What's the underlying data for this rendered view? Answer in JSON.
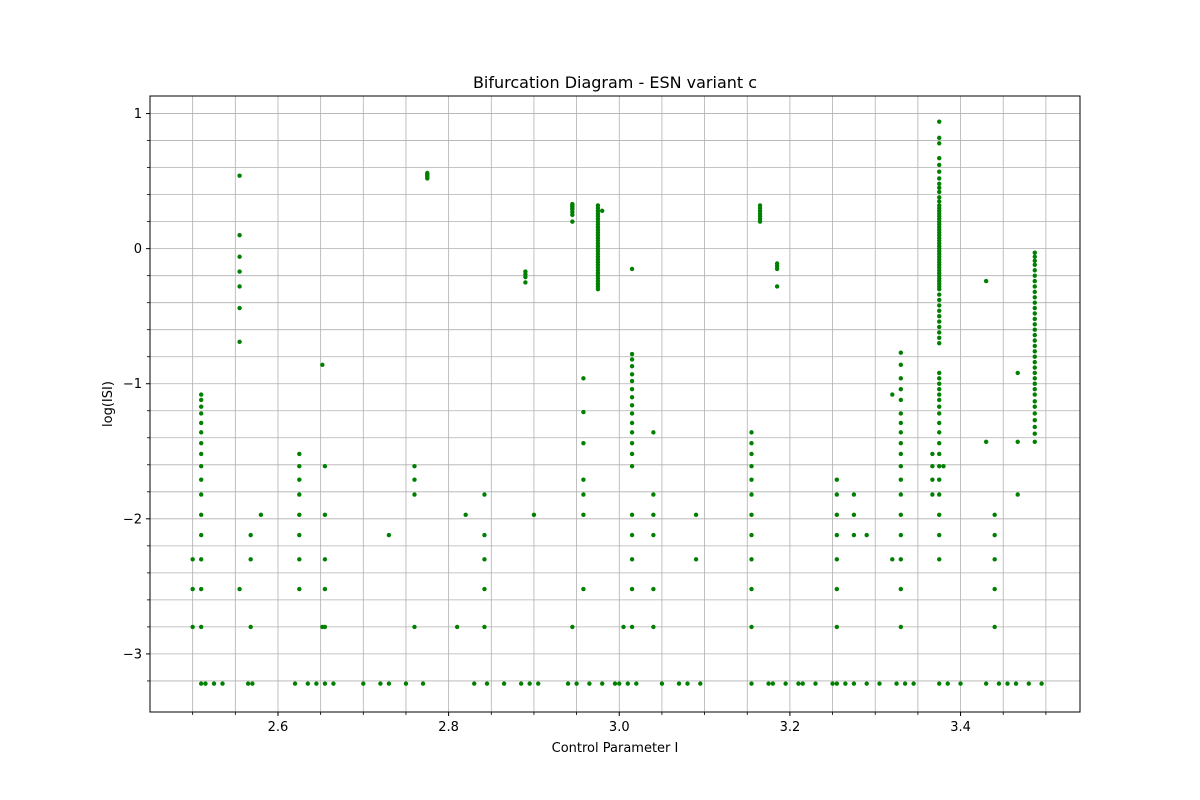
{
  "chart_data": {
    "type": "scatter",
    "title": "Bifurcation Diagram - ESN variant c",
    "xlabel": "Control Parameter I",
    "ylabel": "log(ISI)",
    "xlim": [
      2.45,
      3.54
    ],
    "ylim": [
      -3.43,
      1.13
    ],
    "x_major_ticks": [
      2.6,
      2.8,
      3.0,
      3.2,
      3.4
    ],
    "x_tick_labels": [
      "2.6",
      "2.8",
      "3.0",
      "3.2",
      "3.4"
    ],
    "x_minor_ticks": [
      2.5,
      2.55,
      2.65,
      2.7,
      2.75,
      2.85,
      2.9,
      2.95,
      3.05,
      3.1,
      3.15,
      3.25,
      3.3,
      3.35,
      3.45,
      3.5
    ],
    "y_major_ticks": [
      -3,
      -2,
      -1,
      0,
      1
    ],
    "y_tick_labels": [
      "−3",
      "−2",
      "−1",
      "0",
      "1"
    ],
    "y_minor_ticks": [
      -3.2,
      -2.8,
      -2.6,
      -2.4,
      -2.2,
      -1.8,
      -1.6,
      -1.4,
      -1.2,
      -0.8,
      -0.6,
      -0.4,
      -0.2,
      0.2,
      0.4,
      0.6,
      0.8
    ],
    "grid": true,
    "point_color": "#008000",
    "base_value": -3.22,
    "base_x": [
      2.51,
      2.515,
      2.525,
      2.535,
      2.565,
      2.57,
      2.62,
      2.635,
      2.645,
      2.655,
      2.665,
      2.7,
      2.72,
      2.73,
      2.75,
      2.77,
      2.83,
      2.845,
      2.865,
      2.885,
      2.895,
      2.905,
      2.94,
      2.95,
      2.965,
      2.98,
      2.995,
      3.0,
      3.01,
      3.02,
      3.05,
      3.07,
      3.08,
      3.095,
      3.155,
      3.175,
      3.18,
      3.195,
      3.21,
      3.215,
      3.23,
      3.25,
      3.255,
      3.265,
      3.275,
      3.29,
      3.305,
      3.325,
      3.335,
      3.345,
      3.375,
      3.385,
      3.4,
      3.43,
      3.445,
      3.455,
      3.465,
      3.48,
      3.495
    ],
    "columns": [
      {
        "x": 2.5,
        "y": [
          -2.3,
          -2.52,
          -2.8
        ]
      },
      {
        "x": 2.51,
        "y": [
          -1.08,
          -1.12,
          -1.17,
          -1.22,
          -1.29,
          -1.36,
          -1.44,
          -1.52,
          -1.61,
          -1.71,
          -1.82,
          -1.97,
          -2.12,
          -2.3,
          -2.52,
          -2.8
        ]
      },
      {
        "x": 2.555,
        "y": [
          0.54,
          0.1,
          -0.06,
          -0.17,
          -0.28,
          -0.44,
          -0.69,
          -2.52
        ]
      },
      {
        "x": 2.568,
        "y": [
          -2.12,
          -2.3,
          -2.8
        ]
      },
      {
        "x": 2.58,
        "y": [
          -1.97
        ]
      },
      {
        "x": 2.625,
        "y": [
          -1.52,
          -1.61,
          -1.71,
          -1.82,
          -1.97,
          -2.12,
          -2.3,
          -2.52
        ]
      },
      {
        "x": 2.652,
        "y": [
          -0.86,
          -2.8
        ]
      },
      {
        "x": 2.655,
        "y": [
          -1.61,
          -1.97,
          -2.3,
          -2.52,
          -2.8
        ]
      },
      {
        "x": 2.73,
        "y": [
          -2.12
        ]
      },
      {
        "x": 2.76,
        "y": [
          -1.61,
          -1.71,
          -1.82,
          -2.8
        ]
      },
      {
        "x": 2.775,
        "y": [
          0.52,
          0.53,
          0.54,
          0.55,
          0.56
        ]
      },
      {
        "x": 2.81,
        "y": [
          -2.8
        ]
      },
      {
        "x": 2.82,
        "y": [
          -1.97
        ]
      },
      {
        "x": 2.842,
        "y": [
          -1.82,
          -2.12,
          -2.3,
          -2.52,
          -2.8
        ]
      },
      {
        "x": 2.89,
        "y": [
          -0.17,
          -0.19,
          -0.21,
          -0.25
        ]
      },
      {
        "x": 2.9,
        "y": [
          -1.97
        ]
      },
      {
        "x": 2.945,
        "y": [
          0.2,
          0.25,
          0.27,
          0.29,
          0.3,
          0.31,
          0.32,
          0.33,
          -2.8
        ]
      },
      {
        "x": 2.958,
        "y": [
          -0.96,
          -1.21,
          -1.44,
          -1.71,
          -1.82,
          -1.97,
          -2.52
        ]
      },
      {
        "x": 2.975,
        "y": [
          0.32,
          0.3,
          0.28,
          0.26,
          0.24,
          0.22,
          0.2,
          0.18,
          0.16,
          0.14,
          0.12,
          0.1,
          0.08,
          0.06,
          0.04,
          0.02,
          0.0,
          -0.02,
          -0.04,
          -0.06,
          -0.08,
          -0.1,
          -0.12,
          -0.14,
          -0.16,
          -0.18,
          -0.2,
          -0.22,
          -0.24,
          -0.26,
          -0.28,
          -0.3
        ]
      },
      {
        "x": 2.98,
        "y": [
          0.28
        ]
      },
      {
        "x": 3.005,
        "y": [
          -2.8
        ]
      },
      {
        "x": 3.015,
        "y": [
          -0.15,
          -0.78,
          -0.82,
          -0.87,
          -0.93,
          -0.98,
          -1.04,
          -1.1,
          -1.16,
          -1.22,
          -1.29,
          -1.36,
          -1.44,
          -1.52,
          -1.61,
          -1.97,
          -2.12,
          -2.3,
          -2.52,
          -2.8
        ]
      },
      {
        "x": 3.04,
        "y": [
          -1.36,
          -1.82,
          -1.97,
          -2.12,
          -2.52,
          -2.8
        ]
      },
      {
        "x": 3.09,
        "y": [
          -1.97,
          -2.3
        ]
      },
      {
        "x": 3.155,
        "y": [
          -1.36,
          -1.44,
          -1.52,
          -1.61,
          -1.71,
          -1.82,
          -1.97,
          -2.12,
          -2.3,
          -2.52,
          -2.8
        ]
      },
      {
        "x": 3.165,
        "y": [
          0.2,
          0.22,
          0.24,
          0.26,
          0.28,
          0.3,
          0.32
        ]
      },
      {
        "x": 3.185,
        "y": [
          -0.11,
          -0.13,
          -0.15,
          -0.28
        ]
      },
      {
        "x": 3.255,
        "y": [
          -1.71,
          -1.82,
          -1.97,
          -2.12,
          -2.3,
          -2.52,
          -2.8
        ]
      },
      {
        "x": 3.275,
        "y": [
          -1.82,
          -1.97,
          -2.12
        ]
      },
      {
        "x": 3.29,
        "y": [
          -2.12
        ]
      },
      {
        "x": 3.32,
        "y": [
          -1.08,
          -2.3
        ]
      },
      {
        "x": 3.33,
        "y": [
          -0.77,
          -0.86,
          -0.96,
          -1.04,
          -1.12,
          -1.22,
          -1.29,
          -1.36,
          -1.44,
          -1.52,
          -1.61,
          -1.71,
          -1.82,
          -1.97,
          -2.12,
          -2.3,
          -2.52,
          -2.8
        ]
      },
      {
        "x": 3.367,
        "y": [
          -1.52,
          -1.61,
          -1.71,
          -1.82
        ]
      },
      {
        "x": 3.375,
        "y": [
          0.94,
          0.82,
          0.78,
          0.67,
          0.62,
          0.57,
          0.52,
          0.48,
          0.45,
          0.42,
          0.38,
          0.35,
          0.32,
          0.3,
          0.28,
          0.26,
          0.24,
          0.22,
          0.2,
          0.18,
          0.16,
          0.14,
          0.12,
          0.1,
          0.08,
          0.06,
          0.04,
          0.02,
          0.0,
          -0.02,
          -0.04,
          -0.06,
          -0.08,
          -0.1,
          -0.12,
          -0.14,
          -0.16,
          -0.18,
          -0.2,
          -0.22,
          -0.24,
          -0.26,
          -0.28,
          -0.3,
          -0.34,
          -0.38,
          -0.42,
          -0.46,
          -0.5,
          -0.54,
          -0.58,
          -0.62,
          -0.66,
          -0.7,
          -0.92,
          -0.96,
          -1.0,
          -1.04,
          -1.08,
          -1.12,
          -1.17,
          -1.22,
          -1.29,
          -1.36,
          -1.44,
          -1.52,
          -1.61,
          -1.71,
          -1.82,
          -1.97,
          -2.12,
          -2.3
        ]
      },
      {
        "x": 3.38,
        "y": [
          -1.61
        ]
      },
      {
        "x": 3.43,
        "y": [
          -0.24,
          -1.43
        ]
      },
      {
        "x": 3.44,
        "y": [
          -1.97,
          -2.12,
          -2.3,
          -2.52,
          -2.8
        ]
      },
      {
        "x": 3.467,
        "y": [
          -0.92,
          -1.43,
          -1.82
        ]
      },
      {
        "x": 3.487,
        "y": [
          -0.03,
          -0.06,
          -0.09,
          -0.12,
          -0.16,
          -0.2,
          -0.24,
          -0.28,
          -0.32,
          -0.36,
          -0.4,
          -0.44,
          -0.48,
          -0.52,
          -0.56,
          -0.6,
          -0.64,
          -0.68,
          -0.72,
          -0.76,
          -0.8,
          -0.84,
          -0.88,
          -0.92,
          -0.96,
          -1.0,
          -1.04,
          -1.08,
          -1.13,
          -1.17,
          -1.22,
          -1.27,
          -1.32,
          -1.37,
          -1.43
        ]
      }
    ]
  }
}
